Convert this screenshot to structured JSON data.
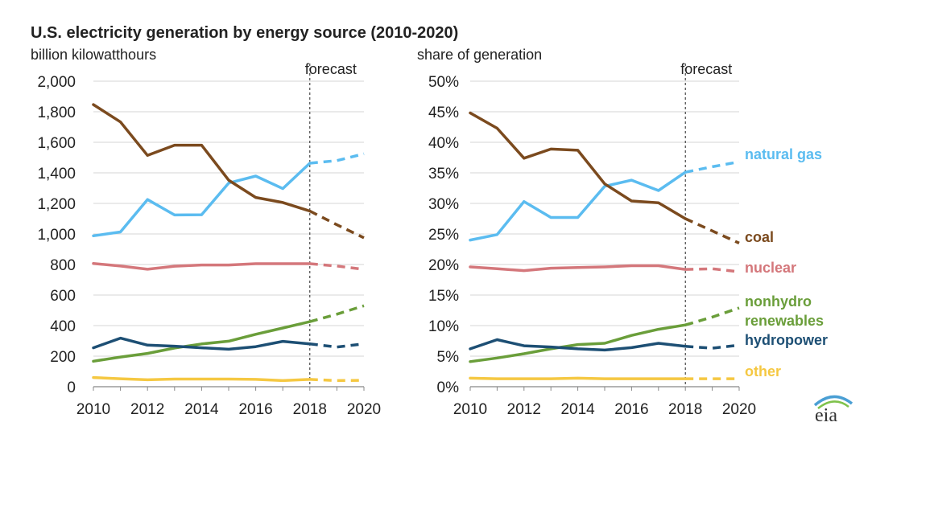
{
  "title": "U.S. electricity generation by energy source  (2010-2020)",
  "logo_text": "eia",
  "forecast_label": "forecast",
  "colors": {
    "natural gas": "#5bbcf0",
    "coal": "#7b4a1e",
    "nuclear": "#d4777b",
    "nonhydro renewables": "#6a9e3a",
    "hydropower": "#1d4f74",
    "other": "#f5c842"
  },
  "chart_data": [
    {
      "type": "line",
      "title": "U.S. electricity generation by energy source  (2010-2020)",
      "ylabel": "billion  kilowatthours",
      "ylim": [
        0,
        2000
      ],
      "yticks": [
        0,
        200,
        400,
        600,
        800,
        1000,
        1200,
        1400,
        1600,
        1800,
        2000
      ],
      "ytick_labels": [
        "0",
        "200",
        "400",
        "600",
        "800",
        "1,000",
        "1,200",
        "1,400",
        "1,600",
        "1,800",
        "2,000"
      ],
      "x": [
        2010,
        2011,
        2012,
        2013,
        2014,
        2015,
        2016,
        2017,
        2018,
        2019,
        2020
      ],
      "xticks": [
        2010,
        2012,
        2014,
        2016,
        2018,
        2020
      ],
      "xtick_labels": [
        "2010",
        "2012",
        "2014",
        "2016",
        "2018",
        "2020"
      ],
      "forecast_from": 2018,
      "series": [
        {
          "name": "natural gas",
          "values": [
            988,
            1013,
            1225,
            1124,
            1126,
            1333,
            1379,
            1297,
            1463,
            1480,
            1525
          ]
        },
        {
          "name": "coal",
          "values": [
            1847,
            1733,
            1514,
            1581,
            1581,
            1352,
            1239,
            1206,
            1150,
            1060,
            975
          ]
        },
        {
          "name": "nuclear",
          "values": [
            807,
            790,
            769,
            789,
            797,
            797,
            805,
            805,
            805,
            790,
            768
          ]
        },
        {
          "name": "nonhydro renewables",
          "values": [
            167,
            194,
            218,
            253,
            280,
            298,
            343,
            384,
            426,
            475,
            530
          ]
        },
        {
          "name": "hydropower",
          "values": [
            255,
            318,
            272,
            265,
            255,
            245,
            262,
            297,
            280,
            260,
            280
          ]
        },
        {
          "name": "other",
          "values": [
            60,
            52,
            45,
            50,
            50,
            50,
            48,
            40,
            48,
            40,
            42
          ]
        }
      ]
    },
    {
      "type": "line",
      "ylabel": "share of generation",
      "ylim": [
        0,
        50
      ],
      "yticks": [
        0,
        5,
        10,
        15,
        20,
        25,
        30,
        35,
        40,
        45,
        50
      ],
      "ytick_labels": [
        "0%",
        "5%",
        "10%",
        "15%",
        "20%",
        "25%",
        "30%",
        "35%",
        "40%",
        "45%",
        "50%"
      ],
      "x": [
        2010,
        2011,
        2012,
        2013,
        2014,
        2015,
        2016,
        2017,
        2018,
        2019,
        2020
      ],
      "xticks": [
        2010,
        2012,
        2014,
        2016,
        2018,
        2020
      ],
      "xtick_labels": [
        "2010",
        "2012",
        "2014",
        "2016",
        "2018",
        "2020"
      ],
      "forecast_from": 2018,
      "series": [
        {
          "name": "natural gas",
          "label": "natural gas",
          "values": [
            24.0,
            24.9,
            30.3,
            27.7,
            27.7,
            32.8,
            33.8,
            32.1,
            35.1,
            36.0,
            36.8
          ]
        },
        {
          "name": "coal",
          "label": "coal",
          "values": [
            44.8,
            42.3,
            37.4,
            38.9,
            38.7,
            33.2,
            30.4,
            30.1,
            27.5,
            25.5,
            23.5
          ]
        },
        {
          "name": "nuclear",
          "label": "nuclear",
          "values": [
            19.6,
            19.3,
            19.0,
            19.4,
            19.5,
            19.6,
            19.8,
            19.8,
            19.2,
            19.3,
            18.8
          ]
        },
        {
          "name": "nonhydro renewables",
          "label": [
            "nonhydro",
            "renewables"
          ],
          "values": [
            4.1,
            4.7,
            5.4,
            6.2,
            6.9,
            7.1,
            8.4,
            9.4,
            10.1,
            11.4,
            12.9
          ]
        },
        {
          "name": "hydropower",
          "label": "hydropower",
          "values": [
            6.2,
            7.7,
            6.7,
            6.5,
            6.2,
            6.0,
            6.4,
            7.1,
            6.6,
            6.3,
            6.8
          ]
        },
        {
          "name": "other",
          "label": "other",
          "values": [
            1.4,
            1.3,
            1.3,
            1.3,
            1.4,
            1.3,
            1.3,
            1.3,
            1.3,
            1.3,
            1.3
          ]
        }
      ]
    }
  ]
}
